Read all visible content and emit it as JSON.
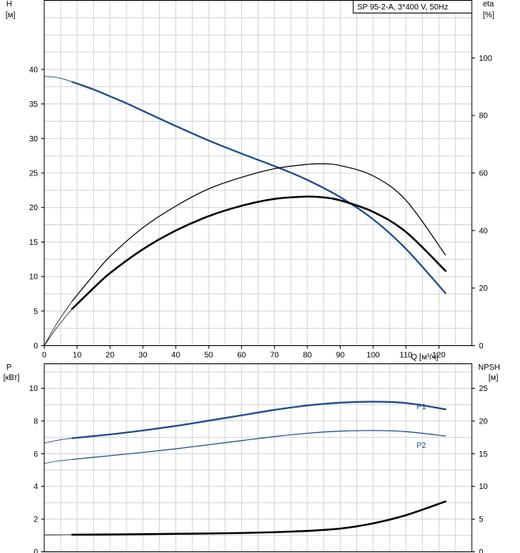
{
  "chart_data": [
    {
      "type": "line",
      "subtitle": "SP 95-2-A, 3*400 V, 50Hz",
      "ylabel": "H",
      "ylabel_unit": "[м]",
      "ylabel_right": "eta",
      "ylabel_right_unit": "[%]",
      "xlabel": "Q [м³/ч]",
      "xlim": [
        0,
        130
      ],
      "ylim": [
        0,
        50
      ],
      "ylim_right": [
        0,
        120
      ],
      "x_ticks": [
        "0",
        "10",
        "20",
        "30",
        "40",
        "50",
        "60",
        "70",
        "80",
        "90",
        "100",
        "110",
        "120"
      ],
      "y_ticks": [
        "0",
        "5",
        "10",
        "15",
        "20",
        "25",
        "30",
        "35",
        "40"
      ],
      "y_right_ticks": [
        "0",
        "20",
        "40",
        "60",
        "80",
        "100"
      ],
      "grid": true,
      "series": [
        {
          "axis": "left",
          "color": "#1f4e8c",
          "width": 2.2,
          "ext_width": 0.9,
          "extension": {
            "x": [
              0,
              3,
              6,
              8.5
            ],
            "y": [
              39.0,
              38.9,
              38.6,
              38.2
            ]
          },
          "x": [
            8.5,
            15,
            20,
            25,
            30,
            40,
            50,
            60,
            70,
            80,
            90,
            100,
            110,
            122
          ],
          "y": [
            38.2,
            37.1,
            36.1,
            35.1,
            34.0,
            31.8,
            29.7,
            27.8,
            26.0,
            24.0,
            21.5,
            18.3,
            14.0,
            7.6
          ]
        },
        {
          "axis": "right",
          "color": "#000000",
          "width": 1.2,
          "ext_width": 0.7,
          "extension": {
            "x": [
              0,
              4,
              8.5
            ],
            "y": [
              0,
              8,
              15.5
            ]
          },
          "x": [
            8.5,
            15,
            20,
            30,
            40,
            50,
            60,
            70,
            80,
            85,
            90,
            100,
            110,
            122
          ],
          "y": [
            15.5,
            24.5,
            31.0,
            41.0,
            48.5,
            54.5,
            58.5,
            61.5,
            63.0,
            63.2,
            62.6,
            59.0,
            50.5,
            31.5
          ]
        },
        {
          "axis": "right",
          "color": "#000000",
          "width": 2.4,
          "ext_width": 0.7,
          "extension": {
            "x": [
              0,
              4,
              8.5
            ],
            "y": [
              0,
              6.5,
              12.8
            ]
          },
          "x": [
            8.5,
            15,
            20,
            30,
            40,
            50,
            60,
            70,
            80,
            85,
            90,
            100,
            110,
            122
          ],
          "y": [
            12.8,
            20.0,
            25.2,
            33.5,
            40.0,
            45.0,
            48.6,
            51.0,
            51.8,
            51.5,
            50.5,
            46.5,
            39.5,
            26.0
          ]
        }
      ]
    },
    {
      "type": "line",
      "ylabel": "P",
      "ylabel_unit": "[кВт]",
      "ylabel_right": "NPSH",
      "ylabel_right_unit": "[м]",
      "xlim": [
        0,
        130
      ],
      "ylim": [
        0,
        11.5
      ],
      "ylim_right": [
        0,
        28.75
      ],
      "y_ticks": [
        "0",
        "2",
        "4",
        "6",
        "8",
        "10"
      ],
      "y_right_ticks": [
        "0",
        "5",
        "10",
        "15",
        "20",
        "25"
      ],
      "grid": true,
      "series": [
        {
          "name": "P1",
          "axis": "left",
          "color": "#1f4e8c",
          "width": 2.2,
          "ext_width": 0.9,
          "extension": {
            "x": [
              0,
              4,
              8.5
            ],
            "y": [
              6.65,
              6.82,
              6.95
            ]
          },
          "x": [
            8.5,
            20,
            30,
            40,
            50,
            60,
            70,
            80,
            90,
            100,
            110,
            122
          ],
          "y": [
            6.95,
            7.18,
            7.42,
            7.7,
            8.02,
            8.35,
            8.68,
            8.95,
            9.12,
            9.18,
            9.1,
            8.72
          ]
        },
        {
          "name": "P2",
          "axis": "left",
          "color": "#1f4e8c",
          "width": 1.2,
          "ext_width": 0.8,
          "extension": {
            "x": [
              0,
              4,
              8.5
            ],
            "y": [
              5.4,
              5.55,
              5.65
            ]
          },
          "x": [
            8.5,
            20,
            30,
            40,
            50,
            60,
            70,
            80,
            90,
            100,
            110,
            122
          ],
          "y": [
            5.65,
            5.88,
            6.08,
            6.3,
            6.55,
            6.8,
            7.05,
            7.25,
            7.38,
            7.42,
            7.35,
            7.08
          ]
        },
        {
          "axis": "right",
          "color": "#000000",
          "width": 2.4,
          "ext_width": 0.7,
          "extension": {
            "x": [
              0,
              4,
              8.5
            ],
            "y": [
              2.6,
              2.6,
              2.62
            ]
          },
          "x": [
            8.5,
            20,
            30,
            40,
            50,
            60,
            70,
            80,
            90,
            100,
            110,
            122
          ],
          "y": [
            2.62,
            2.65,
            2.7,
            2.75,
            2.8,
            2.88,
            3.0,
            3.2,
            3.55,
            4.35,
            5.6,
            7.7
          ]
        }
      ]
    }
  ]
}
